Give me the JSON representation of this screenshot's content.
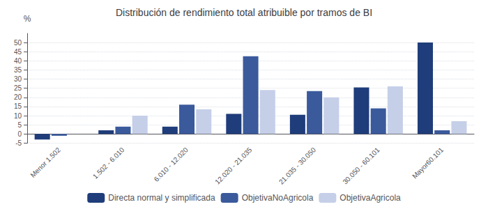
{
  "chart_data": {
    "type": "bar",
    "title": "Distribución de rendimiento total atribuible por tramos de BI",
    "categories": [
      "Menor 1.502",
      "1.502 - 6.010",
      "6.010 - 12.020",
      "12.020 - 21.035",
      "21.035 - 30.050",
      "30.050 - 60.101",
      "Mayor60.101"
    ],
    "series": [
      {
        "name": "Directa normal y simplificada",
        "color": "#1f3d7a",
        "values": [
          -3.0,
          2.0,
          4.0,
          11.0,
          10.5,
          25.5,
          50.0
        ]
      },
      {
        "name": "ObjetivaNoAgricola",
        "color": "#3a5a9c",
        "values": [
          -1.0,
          4.0,
          16.0,
          42.5,
          23.5,
          14.0,
          2.0
        ]
      },
      {
        "name": "ObjetivaAgricola",
        "color": "#c5cfe8",
        "values": [
          0.0,
          10.0,
          13.5,
          24.0,
          20.0,
          26.0,
          7.0
        ]
      }
    ],
    "ylabel": "%",
    "ylim": [
      -5,
      55
    ],
    "yticks": [
      -5,
      0,
      5,
      10,
      15,
      20,
      25,
      30,
      35,
      40,
      45,
      50
    ],
    "grid": true,
    "legend": "bottom"
  }
}
